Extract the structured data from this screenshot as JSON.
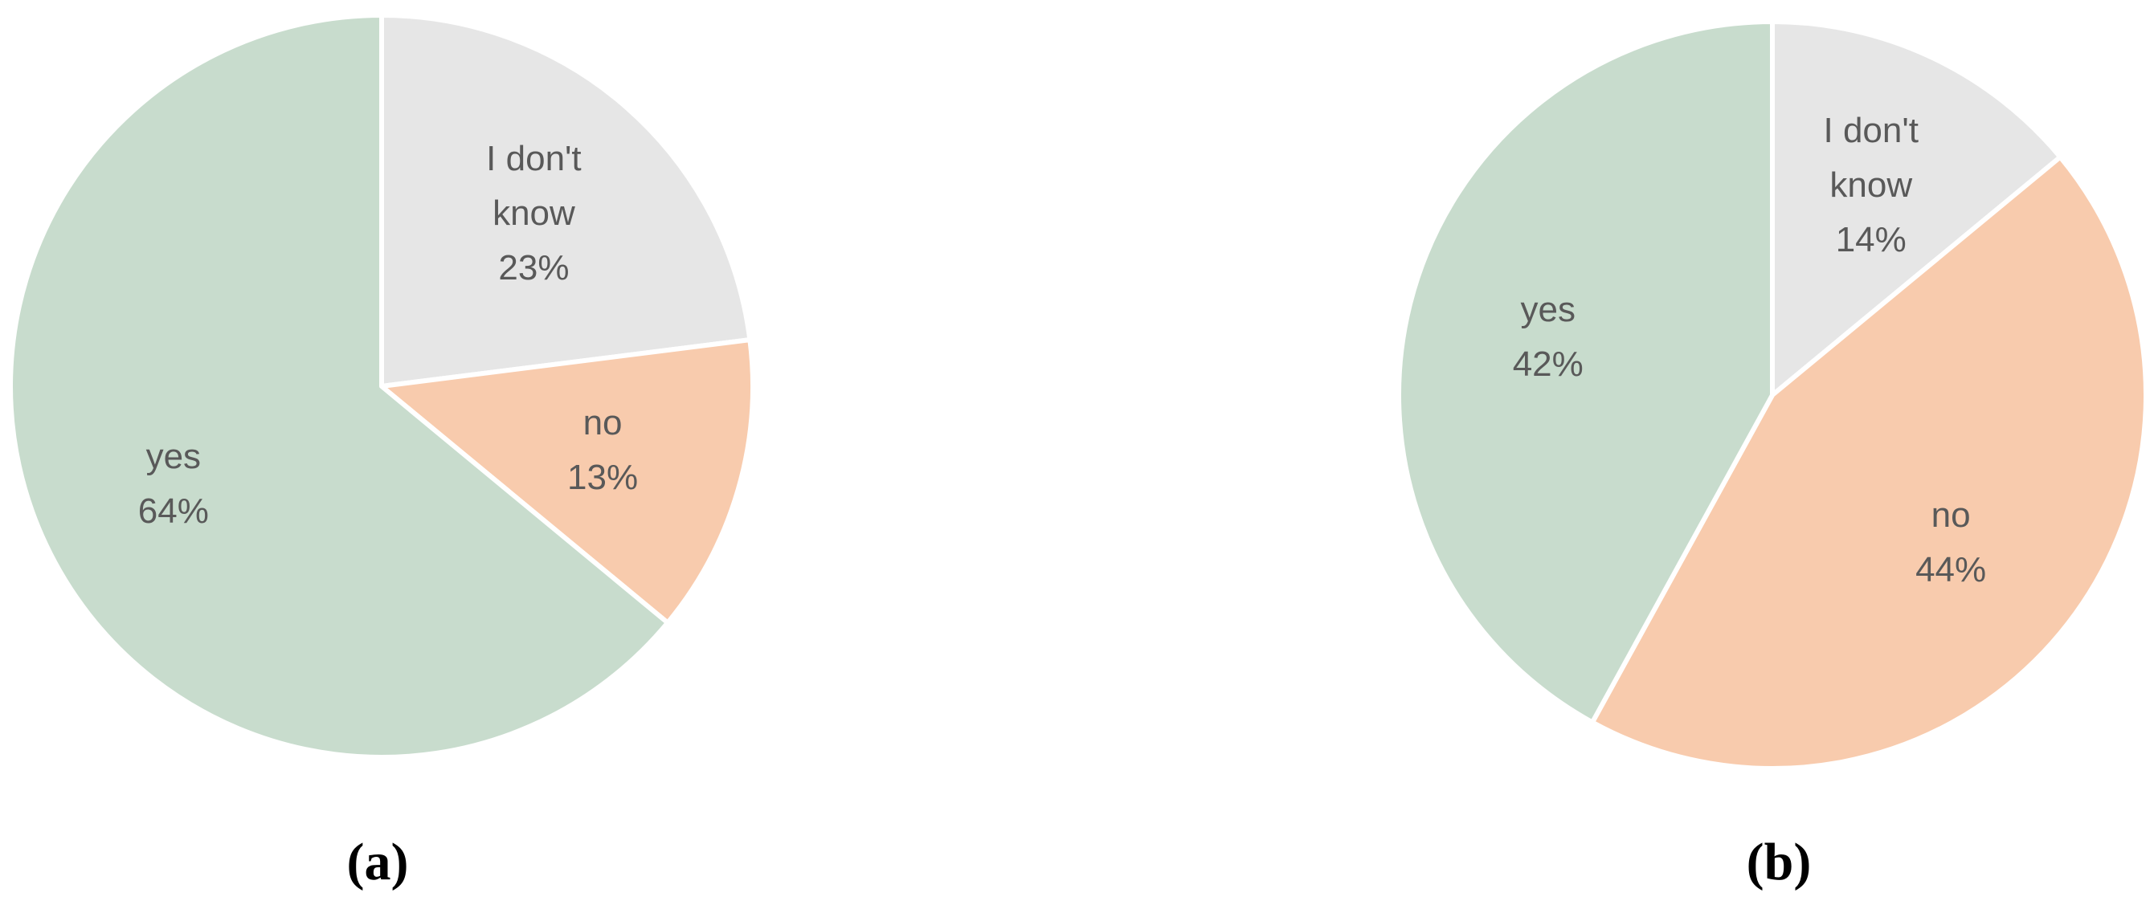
{
  "chart_data": [
    {
      "type": "pie",
      "caption": "(a)",
      "categories": [
        "I don't know",
        "no",
        "yes"
      ],
      "values": [
        23,
        13,
        64
      ],
      "value_labels": [
        "23%",
        "13%",
        "64%"
      ],
      "colors": [
        "#e6e6e6",
        "#f8cbad",
        "#c8dccd"
      ]
    },
    {
      "type": "pie",
      "caption": "(b)",
      "categories": [
        "I don't know",
        "no",
        "yes"
      ],
      "values": [
        14,
        44,
        42
      ],
      "value_labels": [
        "14%",
        "44%",
        "42%"
      ],
      "colors": [
        "#e6e6e6",
        "#f8cbad",
        "#c8dccd"
      ]
    }
  ]
}
